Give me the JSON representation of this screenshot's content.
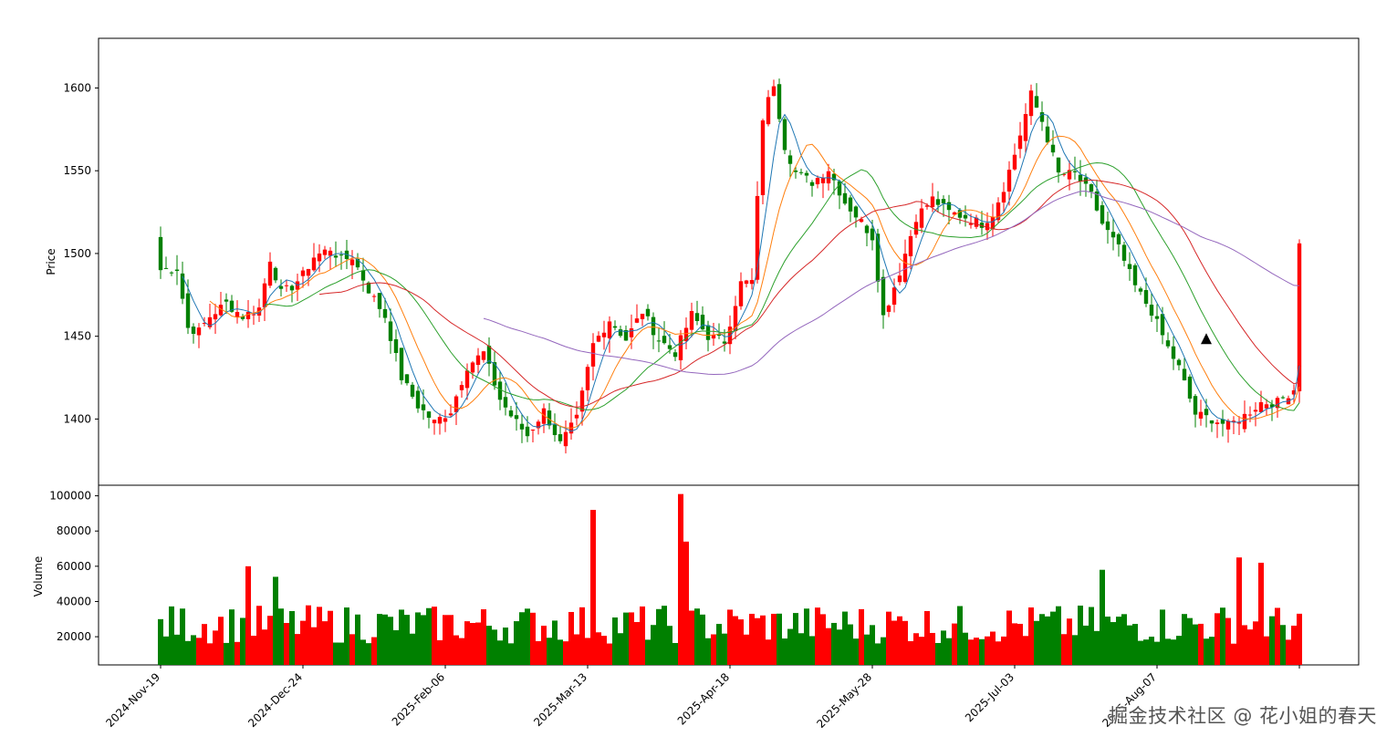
{
  "watermark": "掘金技术社区 @ 花小姐的春天",
  "colors": {
    "up": "#ff0000",
    "down": "#008000",
    "ma5": "#1f77b4",
    "ma10": "#ff7f0e",
    "ma20": "#2ca02c",
    "ma30": "#d62728",
    "ma60": "#9467bd",
    "signal": "#000000"
  },
  "chart_data": [
    {
      "type": "candlestick",
      "panel": "price",
      "ylabel": "Price",
      "ylim": [
        1360,
        1630
      ],
      "yticks": [
        1400,
        1450,
        1500,
        1550,
        1600
      ],
      "dates": [
        "2024-Nov-19",
        "2024-Dec-24",
        "2025-Feb-06",
        "2025-Mar-13",
        "2025-Apr-18",
        "2025-May-28",
        "2025-Jul-03",
        "2025-Aug-07"
      ],
      "date_positions": [
        0,
        26,
        52,
        78,
        104,
        130,
        156,
        182
      ],
      "n_bars": 209,
      "anchor_closes": [
        [
          0,
          1490
        ],
        [
          3,
          1491
        ],
        [
          5,
          1455
        ],
        [
          7,
          1453
        ],
        [
          9,
          1462
        ],
        [
          12,
          1470
        ],
        [
          15,
          1462
        ],
        [
          18,
          1467
        ],
        [
          20,
          1497
        ],
        [
          22,
          1476
        ],
        [
          24,
          1480
        ],
        [
          26,
          1487
        ],
        [
          28,
          1498
        ],
        [
          31,
          1503
        ],
        [
          33,
          1496
        ],
        [
          35,
          1498
        ],
        [
          38,
          1478
        ],
        [
          41,
          1462
        ],
        [
          44,
          1425
        ],
        [
          47,
          1408
        ],
        [
          50,
          1398
        ],
        [
          53,
          1405
        ],
        [
          56,
          1432
        ],
        [
          59,
          1440
        ],
        [
          62,
          1412
        ],
        [
          64,
          1402
        ],
        [
          67,
          1390
        ],
        [
          70,
          1405
        ],
        [
          73,
          1385
        ],
        [
          76,
          1400
        ],
        [
          79,
          1445
        ],
        [
          82,
          1460
        ],
        [
          85,
          1448
        ],
        [
          88,
          1465
        ],
        [
          91,
          1448
        ],
        [
          94,
          1440
        ],
        [
          97,
          1463
        ],
        [
          100,
          1450
        ],
        [
          103,
          1447
        ],
        [
          106,
          1482
        ],
        [
          108,
          1483
        ],
        [
          110,
          1582
        ],
        [
          112,
          1603
        ],
        [
          114,
          1565
        ],
        [
          116,
          1549
        ],
        [
          119,
          1543
        ],
        [
          122,
          1551
        ],
        [
          125,
          1531
        ],
        [
          128,
          1519
        ],
        [
          130,
          1510
        ],
        [
          132,
          1462
        ],
        [
          135,
          1489
        ],
        [
          138,
          1522
        ],
        [
          141,
          1533
        ],
        [
          144,
          1525
        ],
        [
          147,
          1522
        ],
        [
          150,
          1518
        ],
        [
          152,
          1524
        ],
        [
          154,
          1540
        ],
        [
          156,
          1560
        ],
        [
          159,
          1596
        ],
        [
          161,
          1580
        ],
        [
          164,
          1548
        ],
        [
          167,
          1548
        ],
        [
          170,
          1535
        ],
        [
          172,
          1518
        ],
        [
          175,
          1503
        ],
        [
          178,
          1480
        ],
        [
          181,
          1465
        ],
        [
          184,
          1443
        ],
        [
          186,
          1431
        ],
        [
          189,
          1403
        ],
        [
          192,
          1400
        ],
        [
          195,
          1396
        ],
        [
          198,
          1402
        ],
        [
          201,
          1410
        ],
        [
          204,
          1410
        ],
        [
          207,
          1418
        ],
        [
          208,
          1508
        ]
      ],
      "signal_marker": {
        "shape": "triangle-up",
        "bar": 191,
        "price": 1448
      }
    },
    {
      "type": "bar",
      "panel": "volume",
      "ylabel": "Volume",
      "ylim": [
        4000,
        106000
      ],
      "yticks": [
        20000,
        40000,
        60000,
        80000,
        100000
      ],
      "peaks": [
        [
          16,
          60000
        ],
        [
          21,
          54000
        ],
        [
          79,
          92000
        ],
        [
          95,
          101000
        ],
        [
          96,
          74000
        ],
        [
          172,
          58000
        ],
        [
          197,
          65000
        ],
        [
          201,
          62000
        ]
      ]
    }
  ]
}
